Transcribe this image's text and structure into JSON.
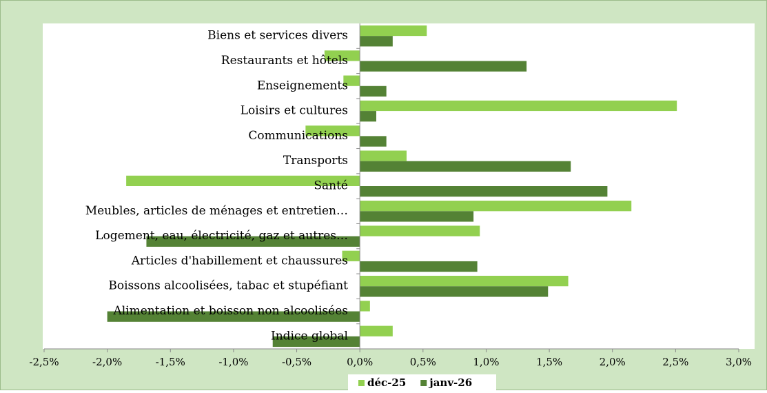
{
  "chart_data": {
    "type": "bar",
    "orientation": "horizontal",
    "categories": [
      "Indice global",
      "Alimentation et boisson non alcoolisées",
      "Boissons alcoolisées, tabac et stupéfiant",
      "Articles d'habillement et chaussures",
      "Logement, eau, électricité, gaz et autres…",
      "Meubles, articles de ménages et entretien…",
      "Santé",
      "Transports",
      "Communications",
      "Loisirs et cultures",
      "Enseignements",
      "Restaurants et hôtels",
      "Biens et services divers"
    ],
    "series": [
      {
        "name": "déc-25",
        "color": "#92d050",
        "values": [
          0.26,
          0.08,
          1.65,
          -0.14,
          0.95,
          2.15,
          -1.85,
          0.37,
          -0.43,
          2.51,
          -0.13,
          -0.28,
          0.53
        ]
      },
      {
        "name": "janv-26",
        "color": "#548235",
        "values": [
          -0.69,
          -2.0,
          1.49,
          0.93,
          -1.69,
          0.9,
          1.96,
          1.67,
          0.21,
          0.13,
          0.21,
          1.32,
          0.26
        ]
      }
    ],
    "xlim": [
      -2.5,
      3.0
    ],
    "xticks": [
      {
        "value": -2.5,
        "label": "-2,5%"
      },
      {
        "value": -2.0,
        "label": "-2,0%"
      },
      {
        "value": -1.5,
        "label": "-1,5%"
      },
      {
        "value": -1.0,
        "label": "-1,0%"
      },
      {
        "value": -0.5,
        "label": "-0,5%"
      },
      {
        "value": 0.0,
        "label": "0,0%"
      },
      {
        "value": 0.5,
        "label": "0,5%"
      },
      {
        "value": 1.0,
        "label": "1,0%"
      },
      {
        "value": 1.5,
        "label": "1,5%"
      },
      {
        "value": 2.0,
        "label": "2,0%"
      },
      {
        "value": 2.5,
        "label": "2,5%"
      },
      {
        "value": 3.0,
        "label": "3,0%"
      }
    ],
    "legend": "bottom"
  }
}
